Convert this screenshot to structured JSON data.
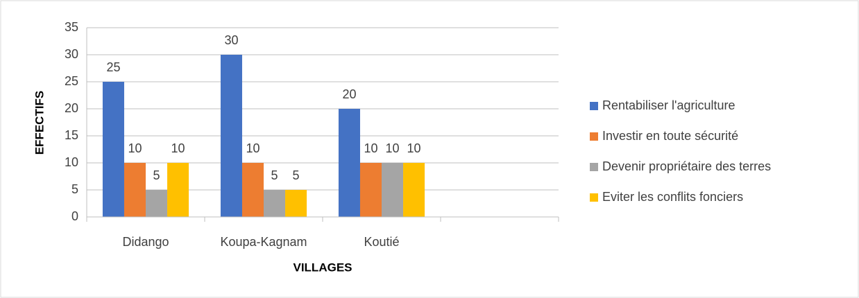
{
  "chart_data": {
    "type": "bar",
    "x_label": "VILLAGES",
    "y_label": "EFFECTIFS",
    "categories": [
      "Didango",
      "Koupa-Kagnam",
      "Koutié",
      null
    ],
    "series": [
      {
        "name": "Rentabiliser l'agriculture",
        "color": "#4472c4",
        "values": [
          25,
          30,
          20,
          null
        ]
      },
      {
        "name": "Investir en toute sécurité",
        "color": "#ed7d31",
        "values": [
          10,
          10,
          10,
          null
        ]
      },
      {
        "name": "Devenir propriétaire des terres",
        "color": "#a5a5a5",
        "values": [
          5,
          5,
          10,
          null
        ]
      },
      {
        "name": "Eviter les conflits fonciers",
        "color": "#ffc000",
        "values": [
          10,
          5,
          10,
          null
        ]
      }
    ],
    "ylim": [
      0,
      35
    ],
    "yticks": [
      0,
      5,
      10,
      15,
      20,
      25,
      30,
      35
    ],
    "grid": true,
    "legend": "right",
    "data_labels": true
  }
}
